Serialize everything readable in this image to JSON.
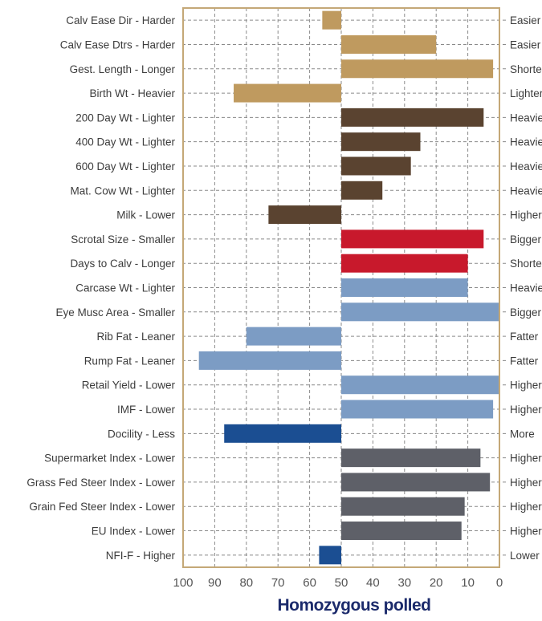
{
  "chart_data": {
    "type": "bar",
    "orientation": "horizontal",
    "xlabel": "Homozygous polled",
    "xlim": [
      100,
      0
    ],
    "x_ticks": [
      "100",
      "90",
      "80",
      "70",
      "60",
      "50",
      "40",
      "30",
      "20",
      "10",
      "0"
    ],
    "grid": true,
    "baseline": 50,
    "colors": {
      "tan": "#bf9a5f",
      "brown": "#5a4330",
      "red": "#c8192c",
      "lightblue": "#7c9cc4",
      "navy": "#1b4e92",
      "grey": "#5e6068",
      "frame": "#c4a877"
    },
    "bars": [
      {
        "label": "Calv Ease Dir - Harder",
        "right_label": "Easier",
        "value": 56,
        "color": "tan"
      },
      {
        "label": "Calv Ease Dtrs - Harder",
        "right_label": "Easier",
        "value": 20,
        "color": "tan"
      },
      {
        "label": "Gest. Length - Longer",
        "right_label": "Shorter",
        "value": 2,
        "color": "tan"
      },
      {
        "label": "Birth Wt - Heavier",
        "right_label": "Lighter",
        "value": 84,
        "color": "tan"
      },
      {
        "label": "200 Day Wt - Lighter",
        "right_label": "Heavier",
        "value": 5,
        "color": "brown"
      },
      {
        "label": "400 Day Wt - Lighter",
        "right_label": "Heavier",
        "value": 25,
        "color": "brown"
      },
      {
        "label": "600 Day Wt - Lighter",
        "right_label": "Heavier",
        "value": 28,
        "color": "brown"
      },
      {
        "label": "Mat. Cow Wt - Lighter",
        "right_label": "Heavier",
        "value": 37,
        "color": "brown"
      },
      {
        "label": "Milk - Lower",
        "right_label": "Higher",
        "value": 73,
        "color": "brown"
      },
      {
        "label": "Scrotal Size - Smaller",
        "right_label": "Bigger",
        "value": 5,
        "color": "red"
      },
      {
        "label": "Days to Calv - Longer",
        "right_label": "Shorter",
        "value": 10,
        "color": "red"
      },
      {
        "label": "Carcase Wt - Lighter",
        "right_label": "Heavier",
        "value": 10,
        "color": "lightblue"
      },
      {
        "label": "Eye Musc Area - Smaller",
        "right_label": "Bigger",
        "value": 0,
        "color": "lightblue"
      },
      {
        "label": "Rib Fat - Leaner",
        "right_label": "Fatter",
        "value": 80,
        "color": "lightblue"
      },
      {
        "label": "Rump Fat - Leaner",
        "right_label": "Fatter",
        "value": 95,
        "color": "lightblue"
      },
      {
        "label": "Retail Yield - Lower",
        "right_label": "Higher",
        "value": 0,
        "color": "lightblue"
      },
      {
        "label": "IMF - Lower",
        "right_label": "Higher",
        "value": 2,
        "color": "lightblue"
      },
      {
        "label": "Docility - Less",
        "right_label": "More",
        "value": 87,
        "color": "navy"
      },
      {
        "label": "Supermarket Index - Lower",
        "right_label": "Higher",
        "value": 6,
        "color": "grey"
      },
      {
        "label": "Grass Fed Steer Index - Lower",
        "right_label": "Higher",
        "value": 3,
        "color": "grey"
      },
      {
        "label": "Grain Fed Steer Index - Lower",
        "right_label": "Higher",
        "value": 11,
        "color": "grey"
      },
      {
        "label": "EU Index - Lower",
        "right_label": "Higher",
        "value": 12,
        "color": "grey"
      },
      {
        "label": "NFI-F - Higher",
        "right_label": "Lower",
        "value": 57,
        "color": "navy"
      }
    ]
  }
}
